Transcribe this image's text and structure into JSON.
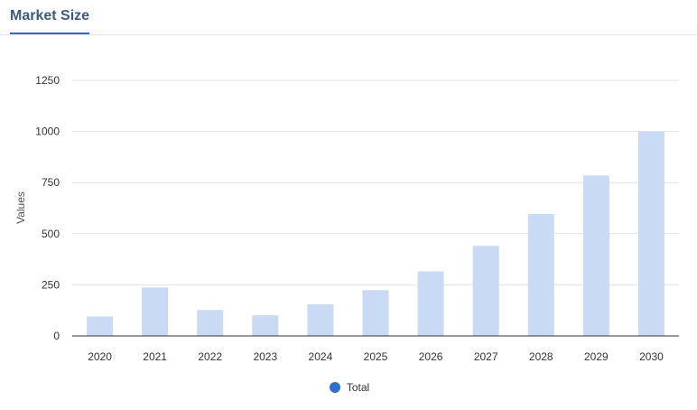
{
  "tab": {
    "label": "Market Size"
  },
  "colors": {
    "bar": "#c9daf5",
    "legend_dot": "#2f6fd0",
    "grid": "#e2e2e2",
    "axis": "#333333"
  },
  "chart_data": {
    "type": "bar",
    "categories": [
      "2020",
      "2021",
      "2022",
      "2023",
      "2024",
      "2025",
      "2026",
      "2027",
      "2028",
      "2029",
      "2030"
    ],
    "series": [
      {
        "name": "Total",
        "values": [
          95,
          237,
          127,
          101,
          155,
          224,
          316,
          441,
          596,
          785,
          1000
        ]
      }
    ],
    "xlabel": "",
    "ylabel": "Values",
    "ylim": [
      0,
      1250
    ],
    "yticks": [
      0,
      250,
      500,
      750,
      1000,
      1250
    ],
    "grid": true,
    "legend": "bottom-center"
  }
}
